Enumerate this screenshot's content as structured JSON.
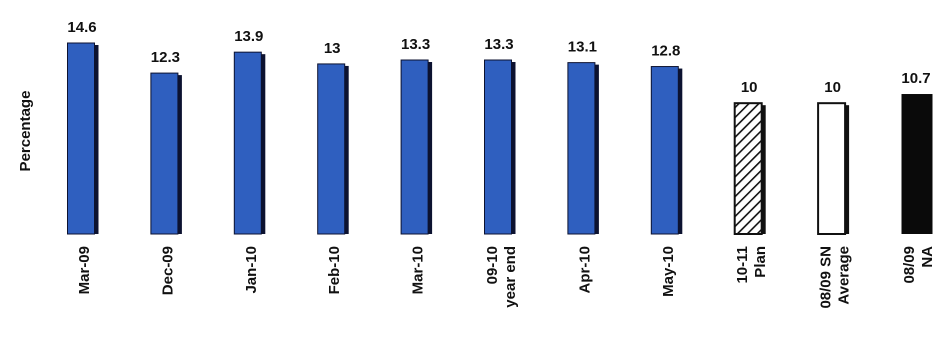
{
  "chart_data": {
    "type": "bar",
    "title": "",
    "xlabel": "",
    "ylabel": "Percentage",
    "ylim": [
      0,
      14.6
    ],
    "grid": false,
    "categories": [
      [
        "Mar-09"
      ],
      [
        "Dec-09"
      ],
      [
        "Jan-10"
      ],
      [
        "Feb-10"
      ],
      [
        "Mar-10"
      ],
      [
        "09-10",
        "year end"
      ],
      [
        "Apr-10"
      ],
      [
        "May-10"
      ],
      [
        "10-11",
        "Plan"
      ],
      [
        "08/09 SN",
        "Average"
      ],
      [
        "08/09",
        "NA"
      ]
    ],
    "values": [
      14.6,
      12.3,
      13.9,
      13,
      13.3,
      13.3,
      13.1,
      12.8,
      10,
      10,
      10.7
    ],
    "value_labels": [
      "14.6",
      "12.3",
      "13.9",
      "13",
      "13.3",
      "13.3",
      "13.1",
      "12.8",
      "10",
      "10",
      "10.7"
    ],
    "bar_styles": [
      "solid-blue",
      "solid-blue",
      "solid-blue",
      "solid-blue",
      "solid-blue",
      "solid-blue",
      "solid-blue",
      "solid-blue",
      "hatched",
      "hollow",
      "solid-black"
    ],
    "colors": {
      "blue_fill": "#2f5fbf",
      "blue_shadow": "#0c1230",
      "black_fill": "#0a0a0a",
      "outline": "#111111",
      "white": "#ffffff"
    }
  }
}
